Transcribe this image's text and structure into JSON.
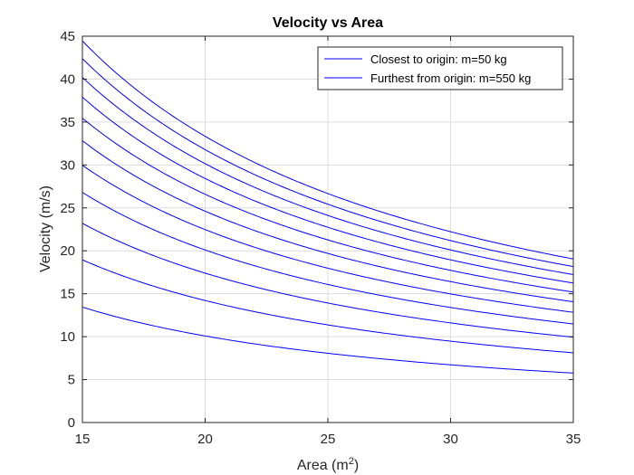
{
  "chart_data": {
    "type": "line",
    "title": "Velocity vs Area",
    "xlabel": "Area (m",
    "xlabel_superscript": "2",
    "xlabel_suffix": ")",
    "ylabel": "Velocity (m/s)",
    "xlim": [
      15,
      35
    ],
    "ylim": [
      0,
      45
    ],
    "xticks": [
      "15",
      "20",
      "25",
      "30",
      "35"
    ],
    "yticks": [
      "0",
      "5",
      "10",
      "15",
      "20",
      "25",
      "30",
      "35",
      "40",
      "45"
    ],
    "grid": true,
    "legend_position": "top-right",
    "line_color": "#0000ff",
    "legend": [
      "Closest to origin: m=50 kg",
      "Furthest from origin: m=550 kg"
    ],
    "x": [
      15,
      17.5,
      20,
      22.5,
      25,
      27.5,
      30,
      32.5,
      35
    ],
    "series": [
      {
        "values": [
          13.4,
          11.7,
          10.05,
          8.93,
          8.04,
          7.31,
          6.7,
          6.18,
          5.74
        ]
      },
      {
        "values": [
          18.95,
          16.24,
          14.21,
          12.63,
          11.37,
          10.34,
          9.48,
          8.75,
          8.12
        ]
      },
      {
        "values": [
          23.2,
          19.89,
          17.4,
          15.47,
          13.92,
          12.65,
          11.6,
          10.71,
          9.94
        ]
      },
      {
        "values": [
          26.8,
          22.97,
          20.1,
          17.87,
          16.08,
          14.62,
          13.4,
          12.37,
          11.49
        ]
      },
      {
        "values": [
          29.96,
          25.68,
          22.47,
          19.97,
          17.98,
          16.34,
          14.98,
          13.83,
          12.84
        ]
      },
      {
        "values": [
          32.82,
          28.13,
          24.62,
          21.88,
          19.69,
          17.9,
          16.41,
          15.15,
          14.07
        ]
      },
      {
        "values": [
          35.45,
          30.39,
          26.59,
          23.63,
          21.27,
          19.34,
          17.73,
          16.36,
          15.19
        ]
      },
      {
        "values": [
          37.9,
          32.49,
          28.43,
          25.27,
          22.74,
          20.67,
          18.95,
          17.49,
          16.24
        ]
      },
      {
        "values": [
          40.2,
          34.46,
          30.15,
          26.8,
          24.12,
          21.93,
          20.1,
          18.55,
          17.23
        ]
      },
      {
        "values": [
          42.38,
          36.33,
          31.79,
          28.25,
          25.43,
          23.12,
          21.19,
          19.56,
          18.16
        ]
      },
      {
        "values": [
          44.45,
          38.1,
          33.34,
          29.63,
          26.67,
          24.25,
          22.23,
          20.52,
          19.05
        ]
      }
    ]
  }
}
